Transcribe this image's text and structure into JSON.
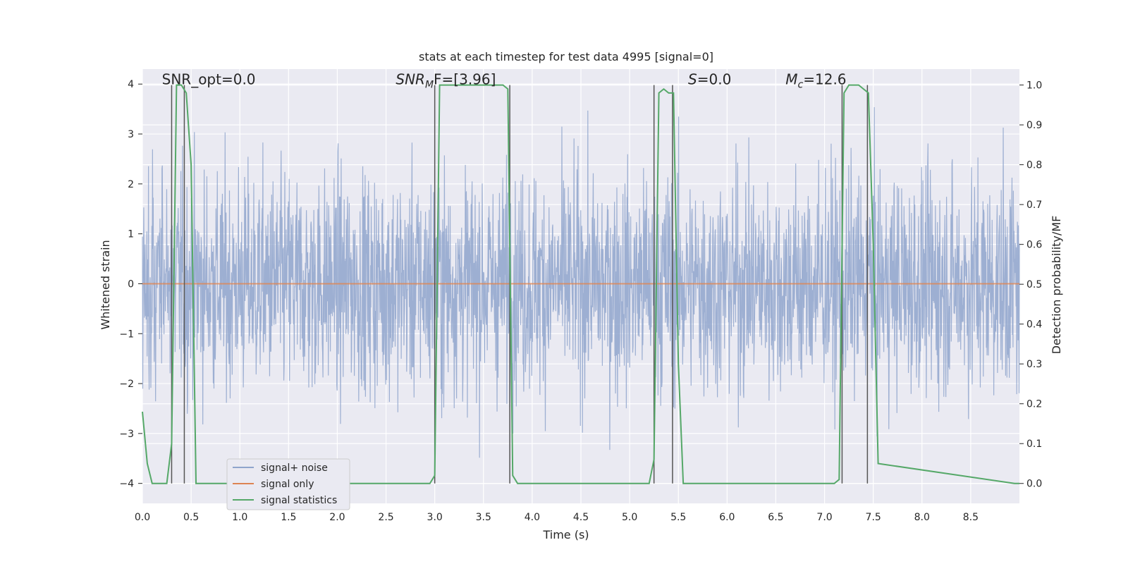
{
  "chart_data": {
    "type": "line",
    "title": "stats at each timestep for test data 4995 [signal=0]",
    "xlabel": "Time (s)",
    "ylabel_left": "Whitened strain",
    "ylabel_right": "Detection probability/MF",
    "xlim": [
      0,
      9.0
    ],
    "ylim_left": [
      -4.4,
      4.3
    ],
    "ylim_right": [
      -0.05,
      1.04
    ],
    "x_ticks": [
      "0.0",
      "0.5",
      "1.0",
      "1.5",
      "2.0",
      "2.5",
      "3.0",
      "3.5",
      "4.0",
      "4.5",
      "5.0",
      "5.5",
      "6.0",
      "6.5",
      "7.0",
      "7.5",
      "8.0",
      "8.5"
    ],
    "x_tick_values": [
      0,
      0.5,
      1,
      1.5,
      2,
      2.5,
      3,
      3.5,
      4,
      4.5,
      5,
      5.5,
      6,
      6.5,
      7,
      7.5,
      8,
      8.5
    ],
    "y_ticks_left": [
      "−4",
      "−3",
      "−2",
      "−1",
      "0",
      "1",
      "2",
      "3",
      "4"
    ],
    "y_tick_values_left": [
      -4,
      -3,
      -2,
      -1,
      0,
      1,
      2,
      3,
      4
    ],
    "y_ticks_right": [
      "0.0",
      "0.1",
      "0.2",
      "0.3",
      "0.4",
      "0.5",
      "0.6",
      "0.7",
      "0.8",
      "0.9",
      "1.0"
    ],
    "y_tick_values_right": [
      0,
      0.1,
      0.2,
      0.3,
      0.4,
      0.5,
      0.6,
      0.7,
      0.8,
      0.9,
      1.0
    ],
    "grid": true,
    "legend_position": "bottom-left",
    "series": [
      {
        "name": "signal+ noise",
        "color": "#8fa5cc",
        "axis": "left",
        "noise_amplitude": 1.1,
        "peak": 3.9
      },
      {
        "name": "signal only",
        "color": "#dd8452",
        "axis": "left",
        "values_constant": 0.0
      },
      {
        "name": "signal statistics",
        "color": "#55a868",
        "axis": "right",
        "x": [
          0.0,
          0.05,
          0.1,
          0.25,
          0.3,
          0.35,
          0.4,
          0.45,
          0.5,
          0.55,
          2.95,
          3.0,
          3.05,
          3.1,
          3.7,
          3.75,
          3.8,
          3.85,
          5.2,
          5.25,
          5.3,
          5.35,
          5.4,
          5.45,
          5.5,
          5.55,
          7.1,
          7.15,
          7.2,
          7.25,
          7.35,
          7.4,
          7.45,
          7.5,
          7.55,
          8.95,
          9.0
        ],
        "values": [
          0.18,
          0.05,
          0.0,
          0.0,
          0.1,
          1.0,
          1.0,
          0.98,
          0.8,
          0.0,
          0.0,
          0.02,
          1.0,
          1.0,
          1.0,
          0.99,
          0.02,
          0.0,
          0.0,
          0.06,
          0.98,
          0.99,
          0.98,
          0.98,
          0.3,
          0.0,
          0.0,
          0.01,
          0.98,
          1.0,
          1.0,
          0.99,
          0.98,
          0.6,
          0.05,
          0.0,
          0.0
        ]
      }
    ],
    "vertical_lines_x": [
      0.3,
      0.43,
      3.0,
      3.77,
      5.25,
      5.44,
      7.18,
      7.44
    ],
    "vertical_line_color": "#555555",
    "annotations": [
      {
        "text": "SNR_opt=0.0",
        "x": 0.2,
        "y_right": 1.0
      },
      {
        "text": "SNR",
        "sub": "M",
        "rest": "F=[3.96]",
        "italic_prefix": true,
        "x": 2.6,
        "y_right": 1.0
      },
      {
        "text": "S",
        "rest": "=0.0",
        "italic_prefix": true,
        "x": 5.6,
        "y_right": 1.0
      },
      {
        "text": "M",
        "sub": "c",
        "rest": "=12.6",
        "italic_prefix": true,
        "x": 6.6,
        "y_right": 1.0
      }
    ]
  }
}
